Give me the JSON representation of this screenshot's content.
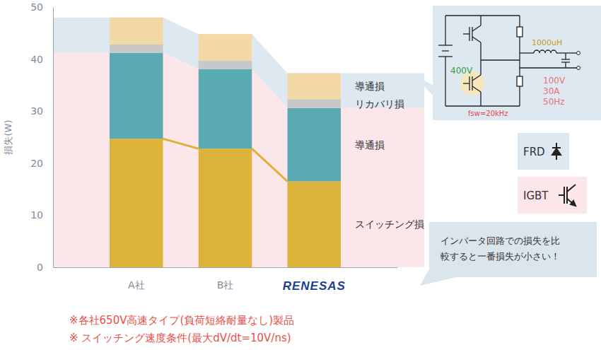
{
  "chart_data": {
    "type": "bar",
    "stacked": true,
    "y_label": "損失(W)",
    "categories": [
      "A社",
      "B社",
      "RENESAS"
    ],
    "ylim": [
      0,
      50
    ],
    "yticks": [
      0,
      10,
      20,
      30,
      40,
      50
    ],
    "series": [
      {
        "name": "スイッチング損",
        "group": "IGBT",
        "color": "#ddb23a",
        "values": [
          24.7,
          22.8,
          16.5
        ]
      },
      {
        "name": "導通損",
        "group": "IGBT",
        "color": "#5aaab4",
        "values": [
          16.5,
          15.3,
          14.1
        ]
      },
      {
        "name": "リカバリ損",
        "group": "FRD",
        "color": "#c8c8c8",
        "values": [
          1.6,
          1.6,
          1.7
        ]
      },
      {
        "name": "導通損",
        "group": "FRD",
        "color": "#f3d9a5",
        "values": [
          5.2,
          5.1,
          5.0
        ]
      }
    ],
    "groups": [
      {
        "name": "FRD",
        "color": "#dde8f0"
      },
      {
        "name": "IGBT",
        "color": "#fbe6ea"
      }
    ],
    "annotation": [
      "インバータ回路での損失を比",
      "較すると一番損失が小さい！"
    ],
    "circuit": {
      "source": "400V",
      "inductor": "1000uH",
      "load": [
        "100V",
        "30A",
        "50Hz"
      ],
      "frequency": "fsw=20kHz"
    },
    "footnotes": [
      "※各社650V高速タイプ(負荷短絡耐量なし)製品",
      "※ スイッチング速度条件(最大dV/dt=10V/ns)"
    ]
  }
}
